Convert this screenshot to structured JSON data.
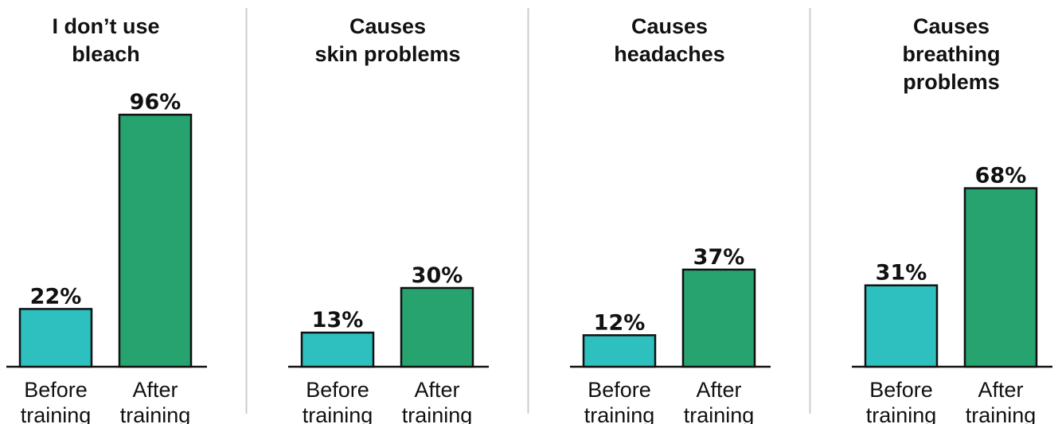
{
  "colors": {
    "before": "#2ebfbf",
    "after": "#27a36f",
    "outline": "#111111",
    "divider": "#cccccc"
  },
  "chart_data": [
    {
      "type": "bar",
      "title_lines": [
        "I don’t use",
        "bleach"
      ],
      "categories": [
        [
          "Before",
          "training"
        ],
        [
          "After",
          "training"
        ]
      ],
      "values": [
        22,
        96
      ],
      "value_labels": [
        "22%",
        "96%"
      ],
      "unit": "%",
      "ylim": [
        0,
        100
      ],
      "grid": false
    },
    {
      "type": "bar",
      "title_lines": [
        "Causes",
        "skin problems"
      ],
      "categories": [
        [
          "Before",
          "training"
        ],
        [
          "After",
          "training"
        ]
      ],
      "values": [
        13,
        30
      ],
      "value_labels": [
        "13%",
        "30%"
      ],
      "unit": "%",
      "ylim": [
        0,
        100
      ],
      "grid": false
    },
    {
      "type": "bar",
      "title_lines": [
        "Causes",
        "headaches"
      ],
      "categories": [
        [
          "Before",
          "training"
        ],
        [
          "After",
          "training"
        ]
      ],
      "values": [
        12,
        37
      ],
      "value_labels": [
        "12%",
        "37%"
      ],
      "unit": "%",
      "ylim": [
        0,
        100
      ],
      "grid": false
    },
    {
      "type": "bar",
      "title_lines": [
        "Causes",
        "breathing",
        "problems"
      ],
      "categories": [
        [
          "Before",
          "training"
        ],
        [
          "After",
          "training"
        ]
      ],
      "values": [
        31,
        68
      ],
      "value_labels": [
        "31%",
        "68%"
      ],
      "unit": "%",
      "ylim": [
        0,
        100
      ],
      "grid": false
    }
  ]
}
